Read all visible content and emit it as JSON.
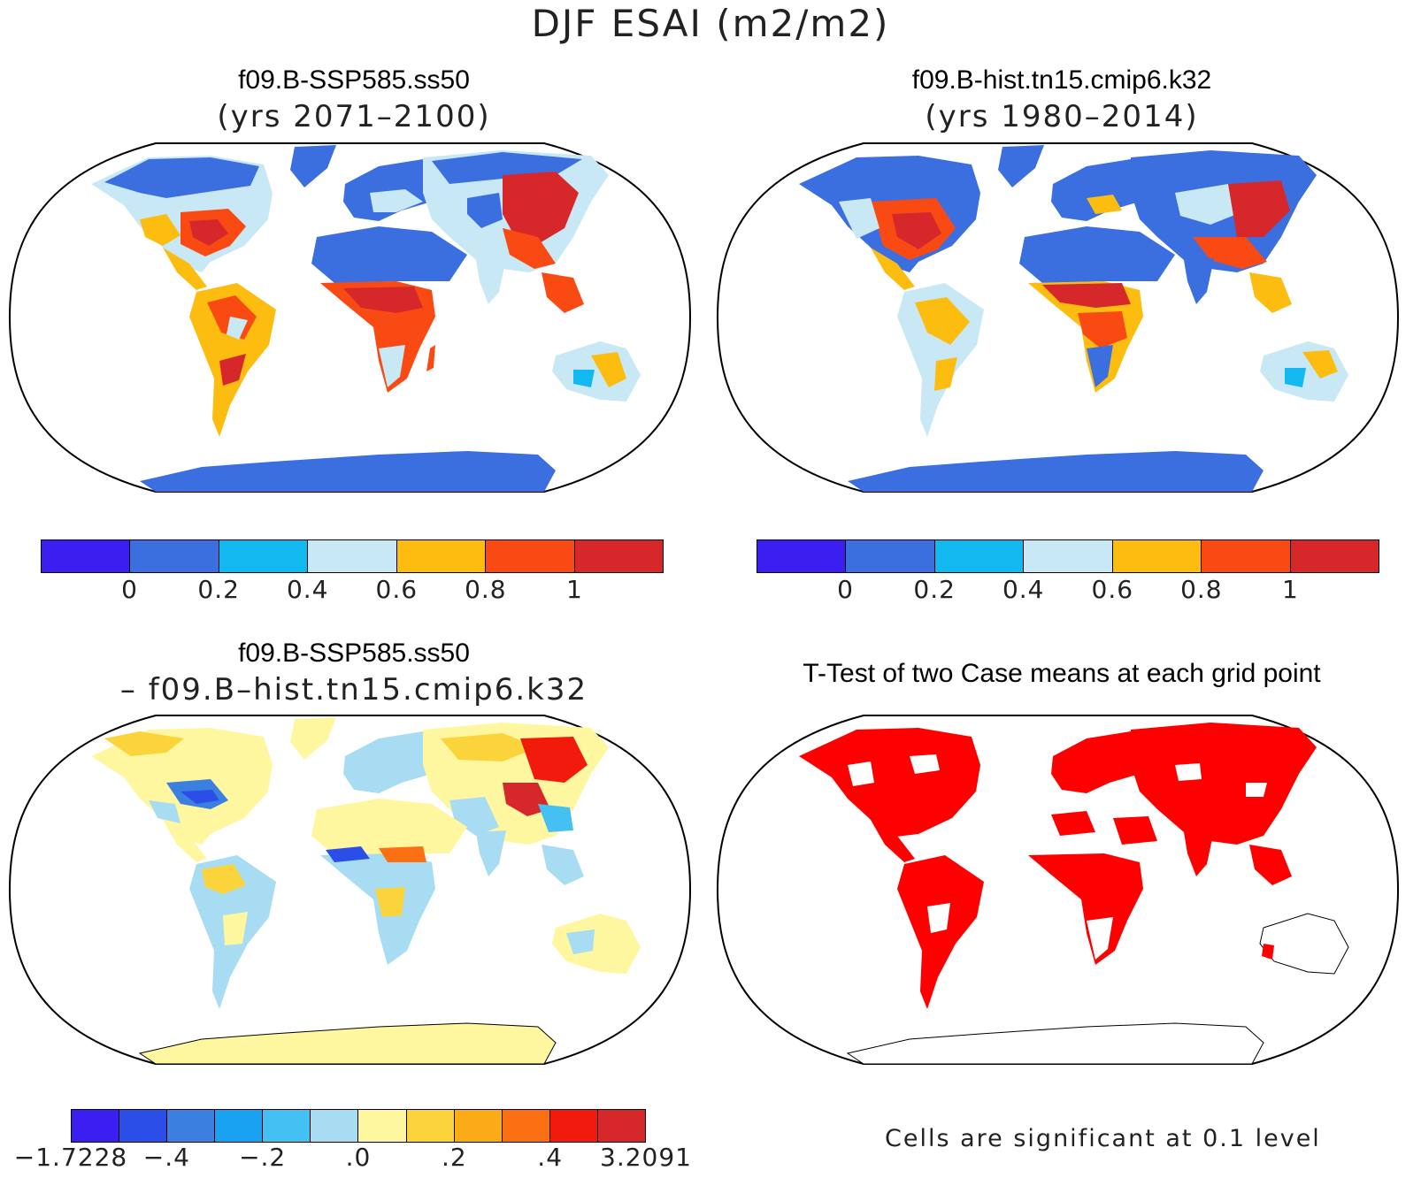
{
  "title": "DJF ESAI (m2/m2)",
  "panels": [
    {
      "id": "p1",
      "title": "f09.B-SSP585.ss50",
      "subtitle": "(yrs 2071–2100)"
    },
    {
      "id": "p2",
      "title": "f09.B-hist.tn15.cmip6.k32",
      "subtitle": "(yrs 1980–2014)"
    },
    {
      "id": "p3",
      "title": "f09.B-SSP585.ss50",
      "subtitle": "– f09.B–hist.tn15.cmip6.k32"
    },
    {
      "id": "p4",
      "title": "T-Test of two Case means at each grid point",
      "subtitle": ""
    }
  ],
  "colorbar_top": {
    "colors": [
      "#3b1ef0",
      "#3b6fe0",
      "#12b9f0",
      "#c8e8f6",
      "#fcbd10",
      "#fa4a14",
      "#d6282a"
    ],
    "labels": [
      "0",
      "0.2",
      "0.4",
      "0.6",
      "0.8",
      "1"
    ]
  },
  "colorbar_diff": {
    "colors": [
      "#3b1ef0",
      "#2c4ee8",
      "#3b7fe0",
      "#1aa2f2",
      "#44c0f2",
      "#a8dcf2",
      "#fff7a0",
      "#fbd33a",
      "#fbab16",
      "#fa7012",
      "#f21a0c",
      "#d6282a"
    ],
    "labels": [
      "−1.7228",
      "−.4",
      "−.2",
      ".0",
      ".2",
      ".4",
      "3.2091"
    ]
  },
  "significance_note": "Cells are significant at 0.1 level",
  "colors": {
    "ocean": "#ffffff",
    "outline": "#000000",
    "significant": "#fe0000"
  }
}
